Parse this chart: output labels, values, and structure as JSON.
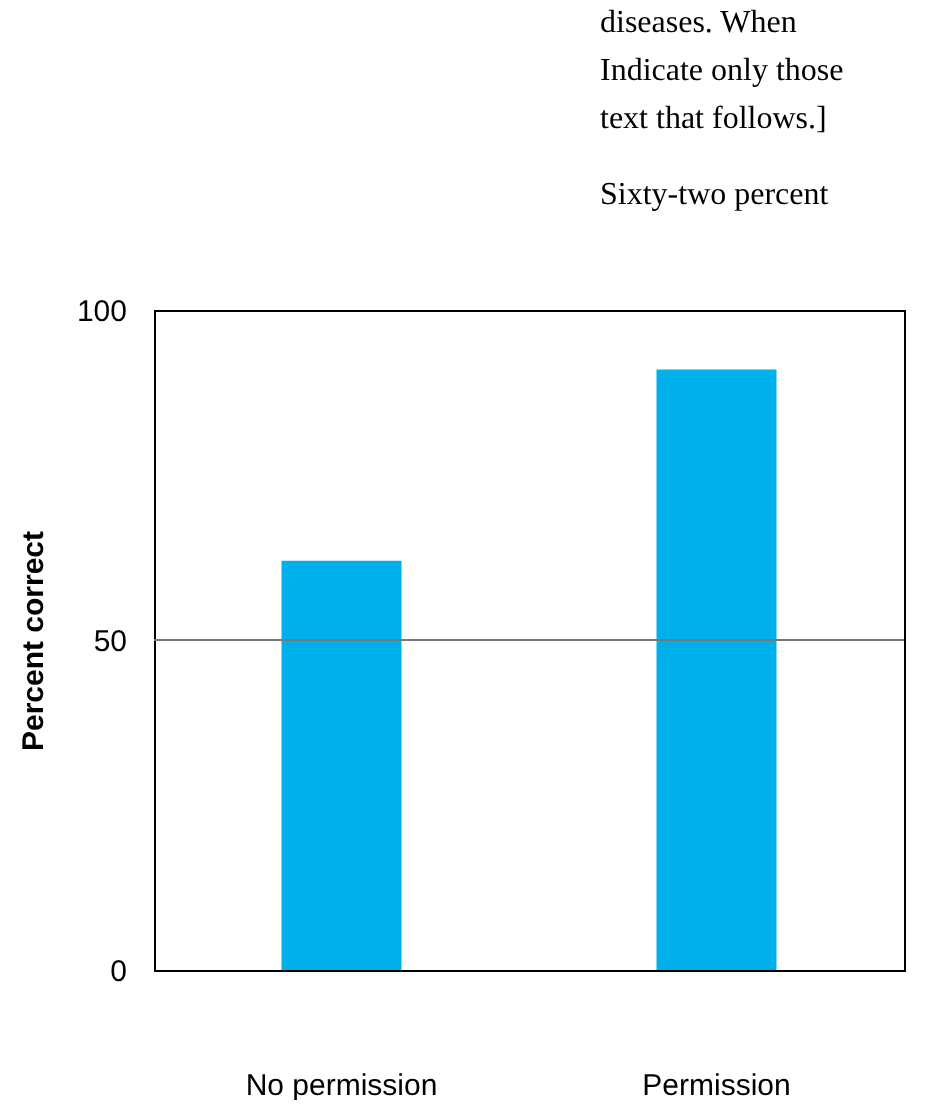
{
  "chart_data": {
    "type": "bar",
    "ylabel": "Percent correct",
    "categories": [
      "No permission",
      "Permission"
    ],
    "values": [
      62,
      91
    ],
    "color": "#00b0ea",
    "ylim": [
      0,
      100
    ],
    "yticks": [
      0,
      50,
      100
    ],
    "ref_lines": [
      {
        "axis": "y",
        "value": 50,
        "color": "#777777"
      }
    ],
    "annotations": [
      "diseases.  When",
      "Indicate only those",
      "text that follows.]",
      "Sixty-two percent"
    ]
  }
}
